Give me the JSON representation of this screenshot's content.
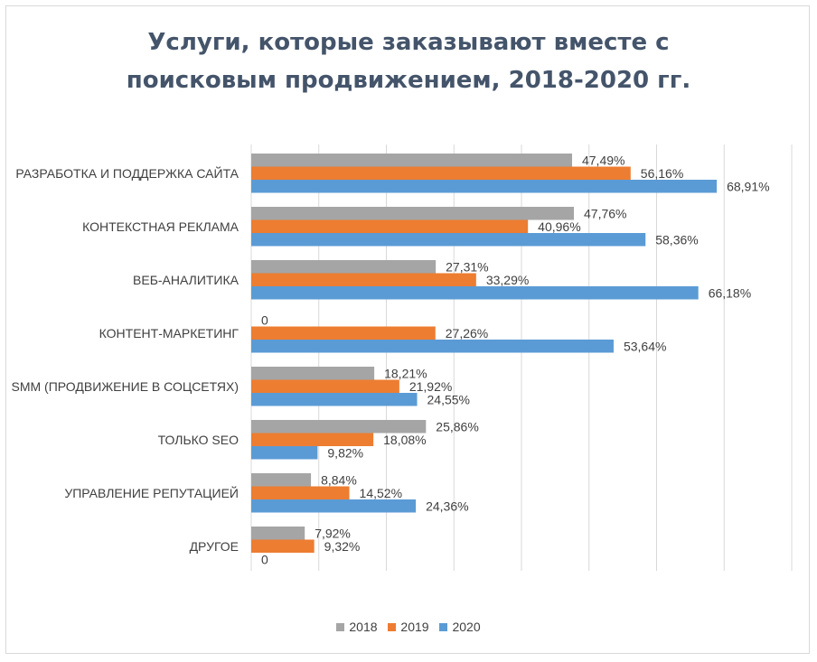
{
  "chart_data": {
    "type": "bar",
    "orientation": "horizontal",
    "title_lines": [
      "Услуги, которые заказывают вместе с",
      "поисковым продвижением, 2018-2020 гг."
    ],
    "categories": [
      "РАЗРАБОТКА И ПОДДЕРЖКА САЙТА",
      "КОНТЕКСТНАЯ РЕКЛАМА",
      "ВЕБ-АНАЛИТИКА",
      "КОНТЕНТ-МАРКЕТИНГ",
      "SMM (ПРОДВИЖЕНИЕ В СОЦСЕТЯХ)",
      "ТОЛЬКО SEO",
      "УПРАВЛЕНИЕ РЕПУТАЦИЕЙ",
      "ДРУГОЕ"
    ],
    "series": [
      {
        "name": "2018",
        "color": "#a5a5a5",
        "values": [
          47.49,
          47.76,
          27.31,
          0,
          18.21,
          25.86,
          8.84,
          7.92
        ],
        "labels": [
          "47,49%",
          "47,76%",
          "27,31%",
          "0",
          "18,21%",
          "25,86%",
          "8,84%",
          "7,92%"
        ]
      },
      {
        "name": "2019",
        "color": "#ed7d31",
        "values": [
          56.16,
          40.96,
          33.29,
          27.26,
          21.92,
          18.08,
          14.52,
          9.32
        ],
        "labels": [
          "56,16%",
          "40,96%",
          "33,29%",
          "27,26%",
          "21,92%",
          "18,08%",
          "14,52%",
          "9,32%"
        ]
      },
      {
        "name": "2020",
        "color": "#5b9bd5",
        "values": [
          68.91,
          58.36,
          66.18,
          53.64,
          24.55,
          9.82,
          24.36,
          0
        ],
        "labels": [
          "68,91%",
          "58,36%",
          "66,18%",
          "53,64%",
          "24,55%",
          "9,82%",
          "24,36%",
          "0"
        ]
      }
    ],
    "xlim": [
      0,
      80
    ],
    "grid": "vertical",
    "legend_position": "bottom"
  }
}
